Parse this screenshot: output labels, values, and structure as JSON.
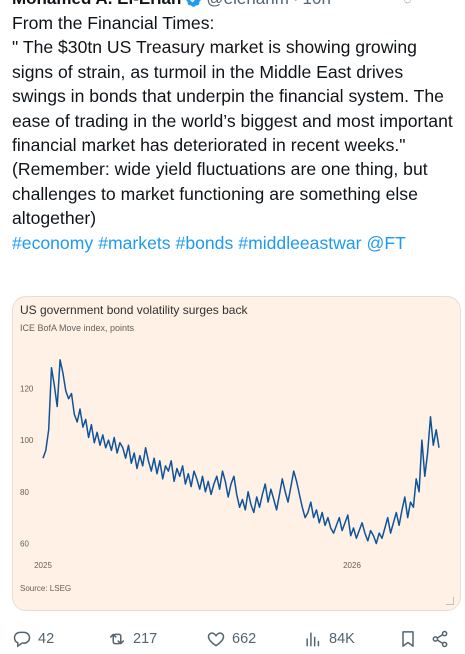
{
  "author": {
    "name": "Mohamed A. El-Erian",
    "handle": "@elerianm",
    "time": "10h",
    "separator": "·"
  },
  "tweet": {
    "lines": [
      "From the Financial Times:",
      "\" The $30tn US Treasury market is showing growing signs of strain, as turmoil in the Middle East drives swings in bonds that underpin the financial system. The ease of trading in the world’s biggest and most important financial market has deteriorated in recent weeks.\"",
      "(Remember: wide yield fluctuations are one thing, but challenges to market functioning are something else altogether)"
    ],
    "hashtags": [
      "#economy",
      "#markets",
      "#bonds",
      "#middleeastwar",
      "@FT"
    ]
  },
  "media": {
    "source": "Source: LSEG",
    "line_color": "#0f5499",
    "background": "#fff1e5"
  },
  "chart_data": {
    "type": "line",
    "title": "US government bond volatility surges back",
    "subtitle": "ICE BofA Move index, points",
    "xlabel": "",
    "ylabel": "",
    "y_ticks": [
      60,
      80,
      100,
      120
    ],
    "x_ticks": [
      "2025",
      "2026"
    ],
    "ylim": [
      54,
      136
    ],
    "grid": false,
    "series": [
      {
        "values": [
          93,
          96,
          104,
          128,
          121,
          113,
          131,
          126,
          119,
          116,
          118,
          110,
          107,
          112,
          105,
          108,
          101,
          106,
          99,
          103,
          98,
          102,
          97,
          100,
          96,
          101,
          95,
          99,
          97,
          93,
          98,
          91,
          95,
          89,
          94,
          90,
          97,
          92,
          88,
          93,
          87,
          92,
          85,
          90,
          88,
          92,
          84,
          89,
          86,
          90,
          83,
          87,
          82,
          88,
          85,
          81,
          86,
          80,
          84,
          79,
          83,
          86,
          81,
          88,
          84,
          78,
          83,
          86,
          79,
          74,
          77,
          73,
          80,
          75,
          72,
          78,
          74,
          79,
          83,
          76,
          81,
          77,
          73,
          79,
          85,
          80,
          76,
          82,
          88,
          84,
          79,
          74,
          70,
          72,
          76,
          70,
          73,
          68,
          72,
          67,
          70,
          66,
          64,
          67,
          70,
          65,
          68,
          71,
          63,
          66,
          62,
          65,
          68,
          64,
          61,
          65,
          63,
          60,
          64,
          62,
          66,
          70,
          64,
          68,
          72,
          67,
          73,
          78,
          70,
          76,
          74,
          85,
          80,
          100,
          86,
          95,
          109,
          98,
          104,
          97
        ]
      }
    ]
  },
  "actions": {
    "reply": {
      "count": "42",
      "icon": "reply-icon"
    },
    "repost": {
      "count": "217",
      "icon": "repost-icon"
    },
    "like": {
      "count": "662",
      "icon": "like-icon"
    },
    "views": {
      "count": "84K",
      "icon": "views-icon"
    },
    "bookmark": {
      "icon": "bookmark-icon"
    },
    "share": {
      "icon": "share-icon"
    }
  },
  "colors": {
    "link": "#1d9bf0",
    "muted": "#536471",
    "verified": "#1d9bf0"
  }
}
